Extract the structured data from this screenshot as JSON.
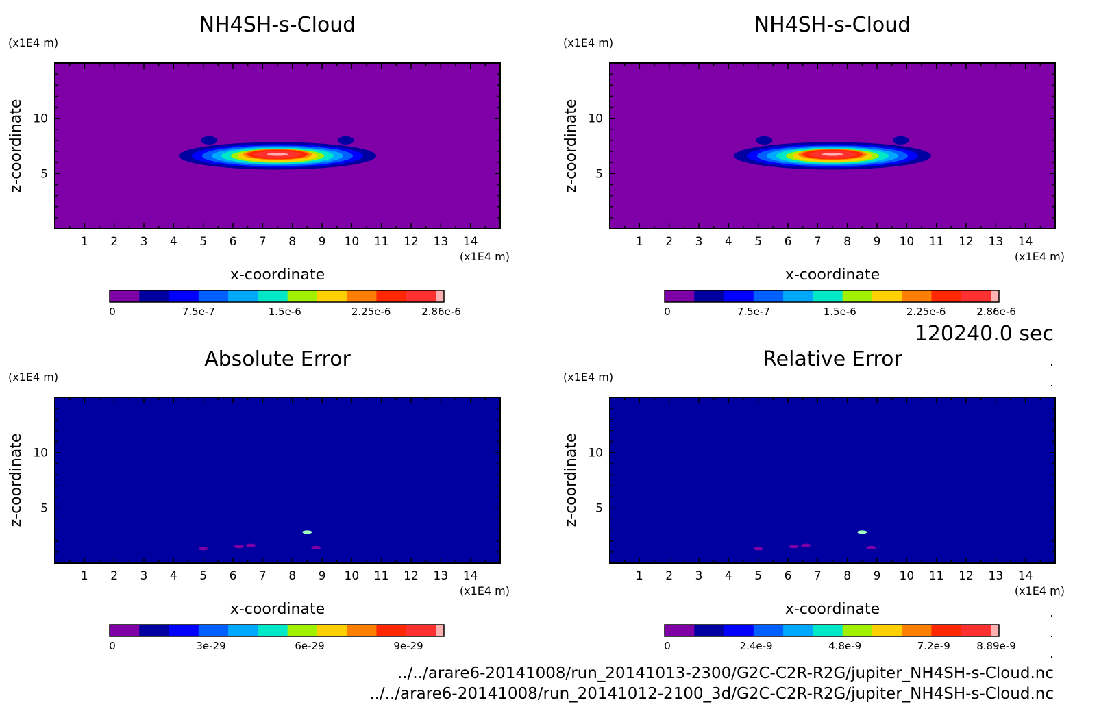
{
  "time_label": "120240.0 sec",
  "files": [
    "../../arare6-20141008/run_20141013-2300/G2C-C2R-R2G/jupiter_NH4SH-s-Cloud.nc",
    "../../arare6-20141008/run_20141012-2100_3d/G2C-C2R-R2G/jupiter_NH4SH-s-Cloud.nc"
  ],
  "chart_data": [
    {
      "type": "heatmap",
      "title": "NH4SH-s-Cloud",
      "xlabel": "x-coordinate",
      "ylabel": "z-coordinate",
      "x_unit": "(x1E4 m)",
      "y_unit": "(x1E4 m)",
      "xlim": [
        0,
        15
      ],
      "ylim": [
        0,
        15
      ],
      "x_ticks": [
        1,
        2,
        3,
        4,
        5,
        6,
        7,
        8,
        9,
        10,
        11,
        12,
        13,
        14
      ],
      "y_ticks": [
        5,
        10
      ],
      "field": "cloud",
      "colorbar": {
        "min": 0,
        "max": 2.86e-06,
        "labels": [
          "0",
          "7.5e-7",
          "1.5e-6",
          "2.25e-6",
          "2.86e-6"
        ],
        "label_values": [
          0,
          7.5e-07,
          1.5e-06,
          2.25e-06,
          2.86e-06
        ]
      }
    },
    {
      "type": "heatmap",
      "title": "NH4SH-s-Cloud",
      "xlabel": "x-coordinate",
      "ylabel": "z-coordinate",
      "x_unit": "(x1E4 m)",
      "y_unit": "(x1E4 m)",
      "xlim": [
        0,
        15
      ],
      "ylim": [
        0,
        15
      ],
      "x_ticks": [
        1,
        2,
        3,
        4,
        5,
        6,
        7,
        8,
        9,
        10,
        11,
        12,
        13,
        14
      ],
      "y_ticks": [
        5,
        10
      ],
      "field": "cloud",
      "colorbar": {
        "min": 0,
        "max": 2.86e-06,
        "labels": [
          "0",
          "7.5e-7",
          "1.5e-6",
          "2.25e-6",
          "2.86e-6"
        ],
        "label_values": [
          0,
          7.5e-07,
          1.5e-06,
          2.25e-06,
          2.86e-06
        ]
      }
    },
    {
      "type": "heatmap",
      "title": "Absolute Error",
      "xlabel": "x-coordinate",
      "ylabel": "z-coordinate",
      "x_unit": "(x1E4 m)",
      "y_unit": "(x1E4 m)",
      "xlim": [
        0,
        15
      ],
      "ylim": [
        0,
        15
      ],
      "x_ticks": [
        1,
        2,
        3,
        4,
        5,
        6,
        7,
        8,
        9,
        10,
        11,
        12,
        13,
        14
      ],
      "y_ticks": [
        5,
        10
      ],
      "field": "error",
      "colorbar": {
        "min": 0,
        "max": 1e-28,
        "labels": [
          "0",
          "3e-29",
          "6e-29",
          "9e-29"
        ],
        "label_values": [
          0,
          3e-29,
          6e-29,
          9e-29
        ]
      }
    },
    {
      "type": "heatmap",
      "title": "Relative Error",
      "xlabel": "x-coordinate",
      "ylabel": "z-coordinate",
      "x_unit": "(x1E4 m)",
      "y_unit": "(x1E4 m)",
      "xlim": [
        0,
        15
      ],
      "ylim": [
        0,
        15
      ],
      "x_ticks": [
        1,
        2,
        3,
        4,
        5,
        6,
        7,
        8,
        9,
        10,
        11,
        12,
        13,
        14
      ],
      "y_ticks": [
        5,
        10
      ],
      "field": "error",
      "colorbar": {
        "min": 0,
        "max": 8.89e-09,
        "labels": [
          "0",
          "2.4e-9",
          "4.8e-9",
          "7.2e-9",
          "8.89e-9"
        ],
        "label_values": [
          0,
          2.4e-09,
          4.8e-09,
          7.2e-09,
          8.89e-09
        ]
      }
    }
  ],
  "palette": [
    "#8000a8",
    "#0000a0",
    "#0000ff",
    "#0060ff",
    "#00a8ff",
    "#00e8c8",
    "#a0f000",
    "#ffd000",
    "#ff8000",
    "#ff2800",
    "#ff3030",
    "#ffb0b0"
  ],
  "error_background": "#0000a0"
}
